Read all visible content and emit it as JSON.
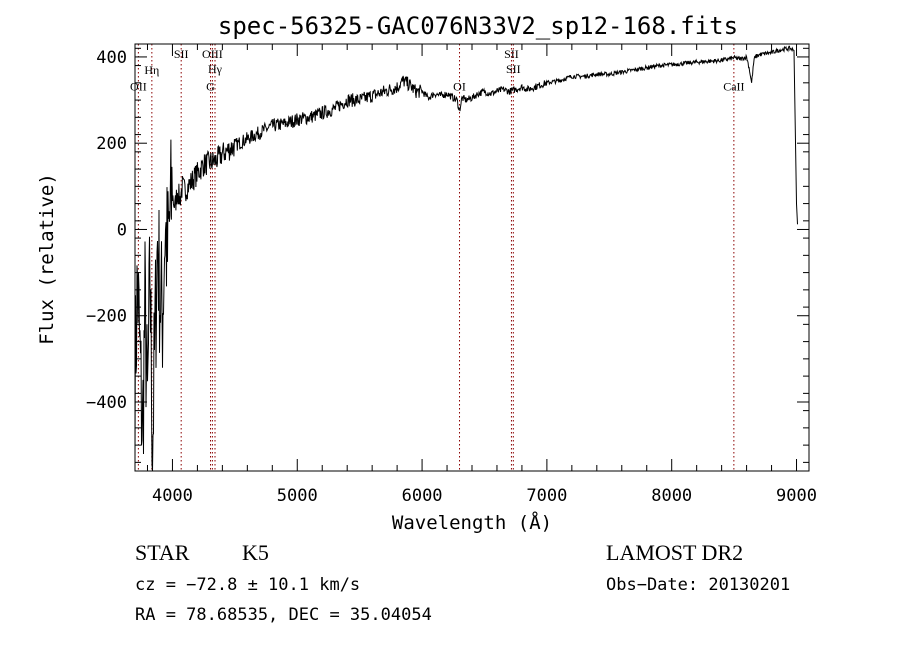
{
  "chart_data": {
    "type": "line",
    "title": "spec-56325-GAC076N33V2_sp12-168.fits",
    "xlabel": "Wavelength (Å)",
    "ylabel": "Flux (relative)",
    "xlim": [
      3700,
      9100
    ],
    "ylim": [
      -560,
      430
    ],
    "x_ticks": [
      4000,
      5000,
      6000,
      7000,
      8000,
      9000
    ],
    "y_ticks": [
      -400,
      -200,
      0,
      200,
      400
    ],
    "grid": false,
    "line_color": "#000000",
    "marker_color": "#8b0000",
    "spectral_lines": [
      {
        "label": "OII",
        "x": 3727,
        "label_flux": 322
      },
      {
        "label": "Hη",
        "x": 3835,
        "label_flux": 360
      },
      {
        "label": "SII",
        "x": 4070,
        "label_flux": 398
      },
      {
        "label": "OIII",
        "x": 4320,
        "label_flux": 398
      },
      {
        "label": "Hγ",
        "x": 4341,
        "label_flux": 363
      },
      {
        "label": "G",
        "x": 4305,
        "label_flux": 322
      },
      {
        "label": "OI",
        "x": 6300,
        "label_flux": 322
      },
      {
        "label": "SII",
        "x": 6716,
        "label_flux": 398
      },
      {
        "label": "SII",
        "x": 6731,
        "label_flux": 363
      },
      {
        "label": "CaII",
        "x": 8498,
        "label_flux": 322
      }
    ],
    "series": [
      {
        "x": [
          3700,
          3720,
          3740,
          3760,
          3780,
          3800,
          3820,
          3840,
          3860,
          3880,
          3900,
          3920,
          3940,
          3960,
          3980,
          4000,
          4020,
          4040,
          4060,
          4080,
          4100,
          4150,
          4200,
          4250,
          4300,
          4350,
          4400,
          4450,
          4500,
          4600,
          4700,
          4800,
          4900,
          5000,
          5100,
          5200,
          5300,
          5400,
          5500,
          5600,
          5700,
          5800,
          5850,
          5900,
          5950,
          6000,
          6050,
          6100,
          6150,
          6200,
          6250,
          6280,
          6300,
          6320,
          6350,
          6400,
          6450,
          6500,
          6550,
          6600,
          6650,
          6700,
          6750,
          6800,
          6850,
          6900,
          6950,
          7000,
          7100,
          7200,
          7300,
          7400,
          7500,
          7600,
          7700,
          7800,
          7900,
          8000,
          8100,
          8200,
          8300,
          8400,
          8450,
          8500,
          8550,
          8600,
          8620,
          8640,
          8660,
          8680,
          8700,
          8750,
          8800,
          8850,
          8900,
          8950,
          8980,
          9000,
          9010
        ],
        "values": [
          -350,
          -120,
          -300,
          -480,
          -180,
          -420,
          -100,
          -500,
          -250,
          -30,
          -150,
          -200,
          0,
          -60,
          30,
          80,
          50,
          90,
          70,
          100,
          90,
          110,
          130,
          150,
          155,
          160,
          175,
          185,
          195,
          210,
          225,
          240,
          245,
          255,
          260,
          270,
          280,
          300,
          300,
          310,
          320,
          330,
          345,
          335,
          320,
          320,
          305,
          315,
          310,
          315,
          305,
          300,
          275,
          305,
          300,
          305,
          315,
          320,
          315,
          320,
          325,
          320,
          325,
          330,
          325,
          330,
          335,
          340,
          345,
          355,
          355,
          360,
          360,
          365,
          370,
          375,
          380,
          382,
          385,
          388,
          390,
          392,
          395,
          398,
          395,
          400,
          375,
          340,
          395,
          402,
          405,
          408,
          410,
          415,
          418,
          420,
          415,
          60,
          0
        ]
      }
    ]
  },
  "info": {
    "class_label": "STAR",
    "subclass_label": "K5",
    "survey": "LAMOST DR2",
    "cz_text": "cz = −72.8 ± 10.1 km/s",
    "obs_date": "Obs−Date: 20130201",
    "radec_text": "RA =  78.68535, DEC =  35.04054"
  }
}
